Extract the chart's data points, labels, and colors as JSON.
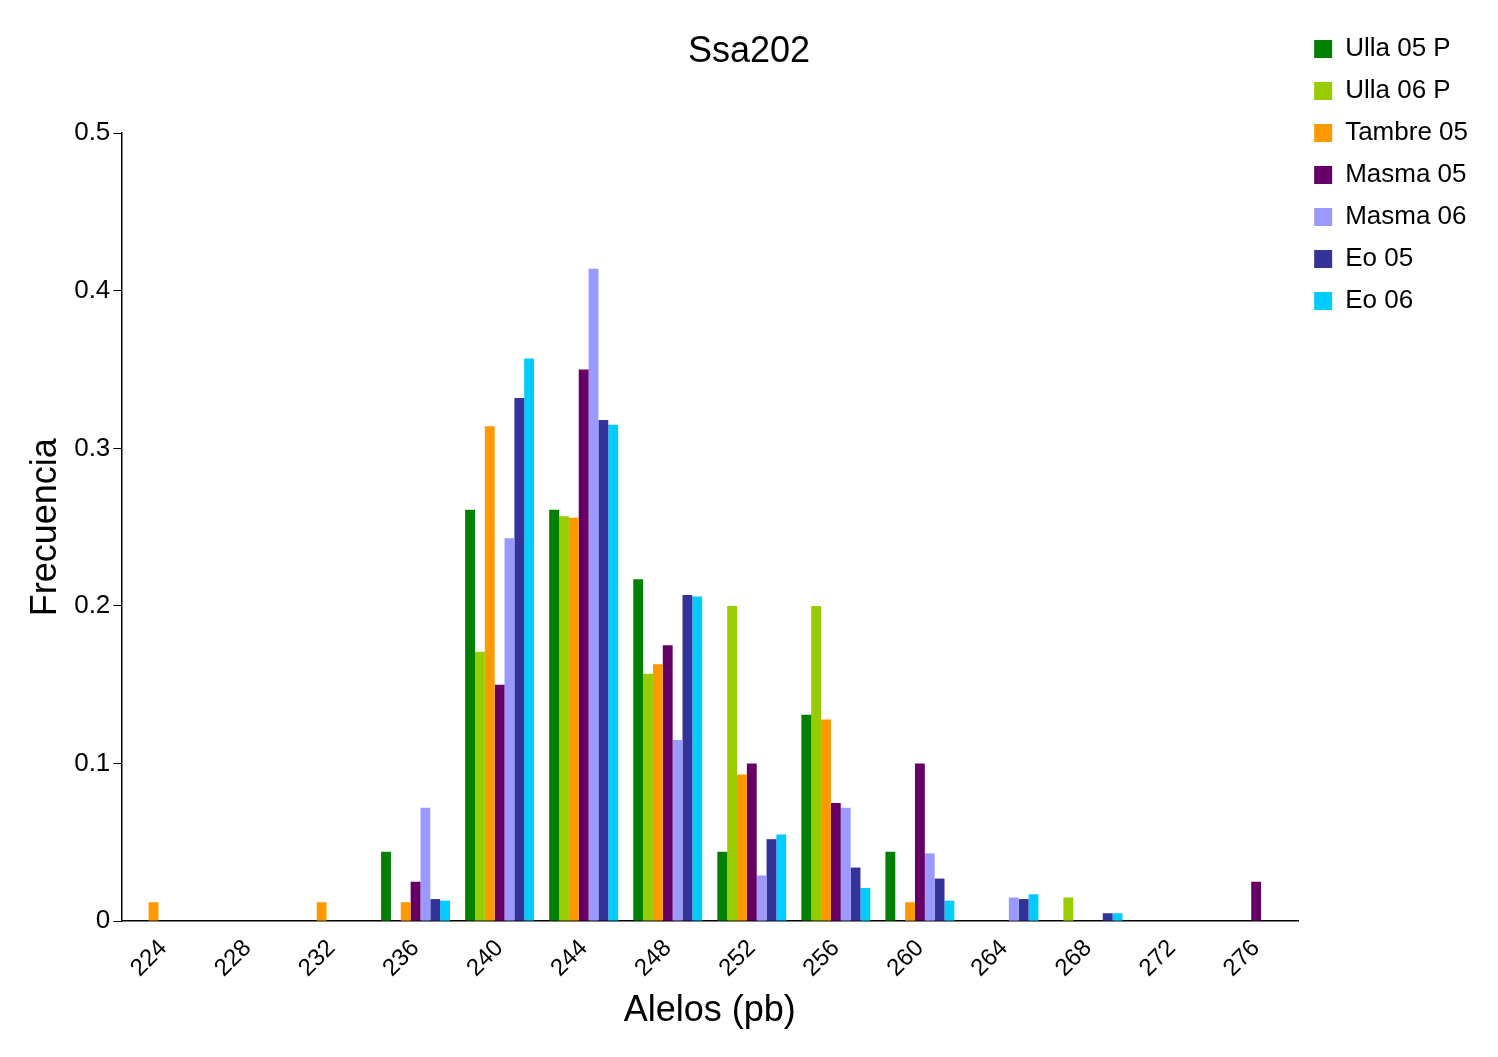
{
  "chart_data": {
    "type": "bar",
    "title": "Ssa202",
    "xlabel": "Alelos (pb)",
    "ylabel": "Frecuencia",
    "categories": [
      "224",
      "228",
      "232",
      "236",
      "240",
      "244",
      "248",
      "252",
      "256",
      "260",
      "264",
      "268",
      "272",
      "276"
    ],
    "series": [
      {
        "name": "Ulla 05 P",
        "color": "#008000",
        "values": [
          0,
          0,
          0,
          0.044,
          0.261,
          0.261,
          0.217,
          0.044,
          0.131,
          0.044,
          0,
          0,
          0,
          0
        ]
      },
      {
        "name": "Ulla 06 P",
        "color": "#99cc00",
        "values": [
          0,
          0,
          0,
          0,
          0.171,
          0.257,
          0.157,
          0.2,
          0.2,
          0,
          0,
          0.015,
          0,
          0
        ]
      },
      {
        "name": "Tambre 05",
        "color": "#ff9900",
        "values": [
          0.012,
          0,
          0.012,
          0.012,
          0.314,
          0.256,
          0.163,
          0.093,
          0.128,
          0.012,
          0,
          0,
          0,
          0
        ]
      },
      {
        "name": "Masma 05",
        "color": "#660066",
        "values": [
          0,
          0,
          0,
          0.025,
          0.15,
          0.35,
          0.175,
          0.1,
          0.075,
          0.1,
          0,
          0,
          0,
          0.025
        ]
      },
      {
        "name": "Masma 06",
        "color": "#9999ff",
        "values": [
          0,
          0,
          0,
          0.072,
          0.243,
          0.414,
          0.115,
          0.029,
          0.072,
          0.043,
          0.015,
          0,
          0,
          0
        ]
      },
      {
        "name": "Eo 05",
        "color": "#333399",
        "values": [
          0,
          0,
          0,
          0.014,
          0.332,
          0.318,
          0.207,
          0.052,
          0.034,
          0.027,
          0.014,
          0.005,
          0,
          0
        ]
      },
      {
        "name": "Eo 06",
        "color": "#00ccff",
        "values": [
          0,
          0,
          0,
          0.013,
          0.357,
          0.315,
          0.206,
          0.055,
          0.021,
          0.013,
          0.017,
          0.005,
          0,
          0
        ]
      }
    ],
    "ylim": [
      0,
      0.5
    ],
    "yticks": [
      0,
      0.1,
      0.2,
      0.3,
      0.4,
      0.5
    ],
    "grid": false,
    "legend": "top right"
  }
}
